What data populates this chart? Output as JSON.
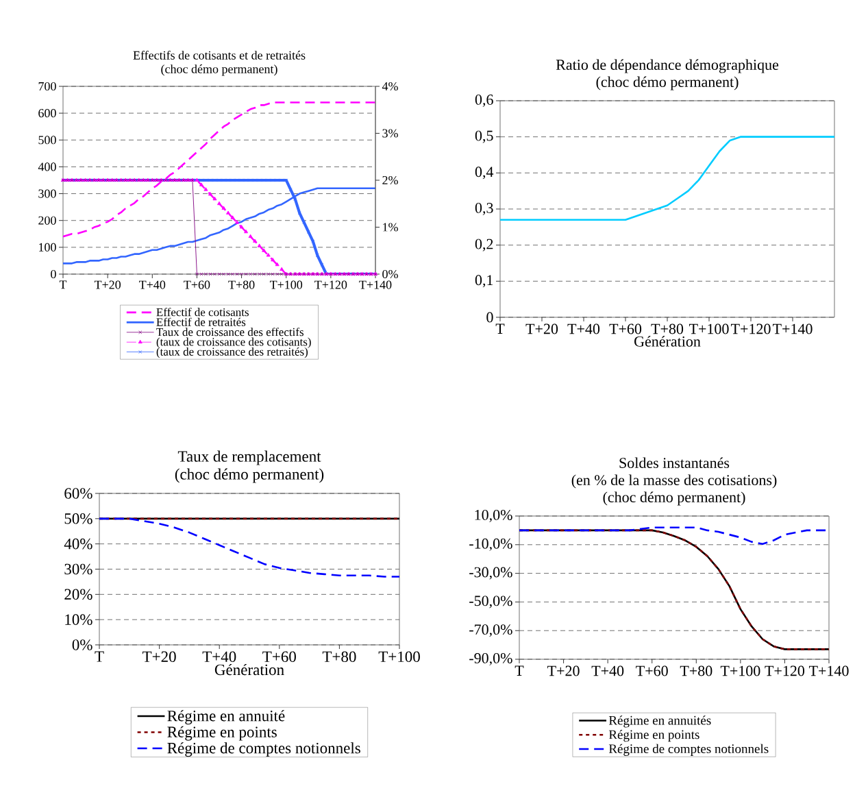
{
  "chart_data": [
    {
      "type": "line",
      "title": "Effectifs de cotisants et de retraités",
      "subtitle": "(choc démo permanent)",
      "categories": [
        "T",
        null,
        null,
        null,
        null,
        null,
        null,
        null,
        null,
        null,
        "T+20",
        null,
        null,
        null,
        null,
        null,
        null,
        null,
        null,
        null,
        "T+40",
        null,
        null,
        null,
        null,
        null,
        null,
        null,
        null,
        null,
        "T+60",
        null,
        null,
        null,
        null,
        null,
        null,
        null,
        null,
        null,
        "T+80",
        null,
        null,
        null,
        null,
        null,
        null,
        null,
        null,
        null,
        "T+100",
        null,
        null,
        null,
        null,
        null,
        null,
        null,
        null,
        null,
        "T+120",
        null,
        null,
        null,
        null,
        null,
        null,
        null,
        null,
        null,
        "T+140"
      ],
      "ylim": [
        0,
        700
      ],
      "yticks": [
        0,
        100,
        200,
        300,
        400,
        500,
        600,
        700
      ],
      "y2lim": [
        0,
        4
      ],
      "y2ticks": [
        {
          "value": 0,
          "label": "0%"
        },
        {
          "value": 1,
          "label": "1%"
        },
        {
          "value": 2,
          "label": "2%"
        },
        {
          "value": 3,
          "label": "3%"
        },
        {
          "value": 4,
          "label": "4%"
        }
      ],
      "grid": "y",
      "legend": "bottom",
      "series": [
        {
          "name": "Effectif de cotisants",
          "color": "#ff00ff",
          "line_style": "dashed",
          "values": [
            140,
            145,
            150,
            150,
            155,
            160,
            165,
            175,
            180,
            190,
            195,
            205,
            220,
            230,
            245,
            255,
            265,
            280,
            290,
            305,
            320,
            330,
            345,
            355,
            370,
            380,
            395,
            410,
            425,
            440,
            455,
            470,
            485,
            505,
            520,
            535,
            550,
            560,
            575,
            585,
            595,
            605,
            615,
            620,
            630,
            630,
            635,
            640,
            640,
            640,
            640,
            640,
            640,
            640,
            640,
            640,
            640,
            640,
            640,
            640,
            640,
            640,
            640,
            640,
            640,
            640,
            640,
            640,
            640,
            640,
            640
          ]
        },
        {
          "name": "Effectif de retraités",
          "color": "#3366ff",
          "line_style": "solid",
          "values": [
            40,
            40,
            40,
            45,
            45,
            45,
            50,
            50,
            50,
            55,
            55,
            60,
            60,
            65,
            65,
            70,
            75,
            75,
            80,
            85,
            90,
            90,
            95,
            100,
            105,
            105,
            110,
            115,
            120,
            120,
            125,
            130,
            135,
            145,
            150,
            155,
            165,
            170,
            180,
            190,
            195,
            205,
            210,
            215,
            225,
            230,
            240,
            245,
            255,
            260,
            270,
            280,
            290,
            300,
            305,
            310,
            315,
            320,
            320,
            320,
            320,
            320,
            320,
            320,
            320,
            320,
            320,
            320,
            320,
            320,
            320
          ]
        },
        {
          "name": "Taux de croissance des effectifs",
          "color": "#800080",
          "line_style": "solid",
          "marker": "cross",
          "axis": "y2",
          "values": [
            2,
            2,
            2,
            2,
            2,
            2,
            2,
            2,
            2,
            2,
            2,
            2,
            2,
            2,
            2,
            2,
            2,
            2,
            2,
            2,
            2,
            2,
            2,
            2,
            2,
            2,
            2,
            2,
            2,
            2,
            0,
            0,
            0,
            0,
            0,
            0,
            0,
            0,
            0,
            0,
            0,
            0,
            0,
            0,
            0,
            0,
            0,
            0,
            0,
            0,
            0,
            0,
            0,
            0,
            0,
            0,
            0,
            0,
            0,
            0,
            0,
            0,
            0,
            0,
            0,
            0,
            0,
            0,
            0,
            0,
            0
          ]
        },
        {
          "name": "(taux de croissance des cotisants)",
          "color": "#ff00ff",
          "line_style": "dashed",
          "marker": "triangle",
          "axis": "y2",
          "values": [
            2,
            2,
            2,
            2,
            2,
            2,
            2,
            2,
            2,
            2,
            2,
            2,
            2,
            2,
            2,
            2,
            2,
            2,
            2,
            2,
            2,
            2,
            2,
            2,
            2,
            2,
            2,
            2,
            2,
            2,
            2,
            1.9,
            1.8,
            1.7,
            1.6,
            1.5,
            1.4,
            1.3,
            1.2,
            1.1,
            1,
            0.9,
            0.8,
            0.7,
            0.6,
            0.5,
            0.4,
            0.3,
            0.2,
            0.1,
            0,
            0,
            0,
            0,
            0,
            0,
            0,
            0,
            0,
            0,
            0,
            0,
            0,
            0,
            0,
            0,
            0,
            0,
            0,
            0,
            0
          ]
        },
        {
          "name": "(taux de croissance des retraités)",
          "color": "#3366ff",
          "line_style": "solid",
          "marker": "cross",
          "axis": "y2",
          "values": [
            2,
            2,
            2,
            2,
            2,
            2,
            2,
            2,
            2,
            2,
            2,
            2,
            2,
            2,
            2,
            2,
            2,
            2,
            2,
            2,
            2,
            2,
            2,
            2,
            2,
            2,
            2,
            2,
            2,
            2,
            2,
            2,
            2,
            2,
            2,
            2,
            2,
            2,
            2,
            2,
            2,
            2,
            2,
            2,
            2,
            2,
            2,
            2,
            2,
            2,
            2,
            1.8,
            1.6,
            1.3,
            1.1,
            0.9,
            0.7,
            0.4,
            0.2,
            0,
            0,
            0,
            0,
            0,
            0,
            0,
            0,
            0,
            0,
            0,
            0
          ]
        }
      ]
    },
    {
      "type": "line",
      "title": "Ratio de dépendance démographique",
      "subtitle": "(choc démo permanent)",
      "xlabel": "Génération",
      "categories": [
        "T",
        null,
        null,
        null,
        "T+20",
        null,
        null,
        null,
        "T+40",
        null,
        null,
        null,
        "T+60",
        null,
        null,
        null,
        "T+80",
        null,
        null,
        null,
        "T+100",
        null,
        null,
        null,
        "T+120",
        null,
        null,
        null,
        "T+140",
        null,
        null,
        null,
        null
      ],
      "ylim": [
        0,
        0.6
      ],
      "yticks": [
        0,
        {
          "value": 0.1,
          "label": "0,1"
        },
        {
          "value": 0.2,
          "label": "0,2"
        },
        {
          "value": 0.3,
          "label": "0,3"
        },
        {
          "value": 0.4,
          "label": "0,4"
        },
        {
          "value": 0.5,
          "label": "0,5"
        },
        {
          "value": 0.6,
          "label": "0,6"
        }
      ],
      "grid": "y",
      "series": [
        {
          "color": "#00ccff",
          "line_style": "solid",
          "values": [
            0.27,
            0.27,
            0.27,
            0.27,
            0.27,
            0.27,
            0.27,
            0.27,
            0.27,
            0.27,
            0.27,
            0.27,
            0.27,
            0.28,
            0.29,
            0.3,
            0.31,
            0.33,
            0.35,
            0.38,
            0.42,
            0.46,
            0.49,
            0.5,
            0.5,
            0.5,
            0.5,
            0.5,
            0.5,
            0.5,
            0.5,
            0.5,
            0.5
          ]
        }
      ]
    },
    {
      "type": "line",
      "title": "Taux de remplacement",
      "subtitle": "(choc démo permanent)",
      "xlabel": "Génération",
      "categories": [
        "T",
        null,
        null,
        null,
        "T+20",
        null,
        null,
        null,
        "T+40",
        null,
        null,
        null,
        "T+60",
        null,
        null,
        null,
        "T+80",
        null,
        null,
        null,
        "T+100"
      ],
      "ylim": [
        0,
        60
      ],
      "yticks": [
        {
          "value": 0,
          "label": "0%"
        },
        {
          "value": 10,
          "label": "10%"
        },
        {
          "value": 20,
          "label": "20%"
        },
        {
          "value": 30,
          "label": "30%"
        },
        {
          "value": 40,
          "label": "40%"
        },
        {
          "value": 50,
          "label": "50%"
        },
        {
          "value": 60,
          "label": "60%"
        }
      ],
      "grid": "y",
      "legend": "bottom",
      "series": [
        {
          "name": "Régime en annuité",
          "color": "#000000",
          "line_style": "solid",
          "values": [
            50,
            50,
            50,
            50,
            50,
            50,
            50,
            50,
            50,
            50,
            50,
            50,
            50,
            50,
            50,
            50,
            50,
            50,
            50,
            50,
            50
          ]
        },
        {
          "name": "Régime en points",
          "color": "#800000",
          "line_style": "dotted",
          "values": [
            50,
            50,
            50,
            50,
            50,
            50,
            50,
            50,
            50,
            50,
            50,
            50,
            50,
            50,
            50,
            50,
            50,
            50,
            50,
            50,
            50
          ]
        },
        {
          "name": "Régime de comptes notionnels",
          "color": "#0000ff",
          "line_style": "dashed",
          "values": [
            50,
            50,
            50,
            49,
            48,
            46.5,
            44.5,
            42,
            39.5,
            37,
            34.5,
            32,
            30.5,
            29.5,
            28.5,
            28,
            27.5,
            27.5,
            27.5,
            27,
            27
          ]
        }
      ]
    },
    {
      "type": "line",
      "title": "Soldes instantanés",
      "subtitle": "(en % de la masse des cotisations)",
      "annotations": [
        "(choc démo permanent)"
      ],
      "categories": [
        "T",
        null,
        null,
        null,
        "T+20",
        null,
        null,
        null,
        "T+40",
        null,
        null,
        null,
        "T+60",
        null,
        null,
        null,
        "T+80",
        null,
        null,
        null,
        "T+100",
        null,
        null,
        null,
        "T+120",
        null,
        null,
        null,
        "T+140"
      ],
      "ylim": [
        -90,
        10
      ],
      "yticks": [
        {
          "value": -90,
          "label": "-90,0%"
        },
        {
          "value": -70,
          "label": "-70,0%"
        },
        {
          "value": -50,
          "label": "-50,0%"
        },
        {
          "value": -30,
          "label": "-30,0%"
        },
        {
          "value": -10,
          "label": "-10,0%"
        },
        {
          "value": 10,
          "label": "10,0%"
        }
      ],
      "grid": "y",
      "legend": "bottom",
      "series": [
        {
          "name": "Régime en annuités",
          "color": "#000000",
          "line_style": "solid",
          "values": [
            0,
            0,
            0,
            0,
            0,
            0,
            0,
            0,
            0,
            0,
            0,
            0,
            0,
            -1.5,
            -4,
            -7,
            -11.5,
            -18,
            -27,
            -39,
            -55,
            -67,
            -76,
            -81,
            -83,
            -83,
            -83,
            -83,
            -83
          ]
        },
        {
          "name": "Régime en points",
          "color": "#800000",
          "line_style": "dotted",
          "values": [
            0,
            0,
            0,
            0,
            0,
            0,
            0,
            0,
            0,
            0,
            0,
            0,
            0,
            -1.5,
            -4,
            -7,
            -11.5,
            -18,
            -27,
            -39,
            -55,
            -67,
            -76,
            -81,
            -83,
            -83,
            -83,
            -83,
            -83
          ]
        },
        {
          "name": "Régime de comptes notionnels",
          "color": "#0000ff",
          "line_style": "dashed",
          "values": [
            0,
            0,
            0,
            0,
            0,
            0,
            0,
            0,
            0,
            0,
            0,
            1,
            2,
            2,
            2,
            2,
            2,
            0,
            -1,
            -3,
            -5,
            -8,
            -9.5,
            -7,
            -3,
            -1.5,
            0,
            0,
            0
          ]
        }
      ]
    }
  ]
}
